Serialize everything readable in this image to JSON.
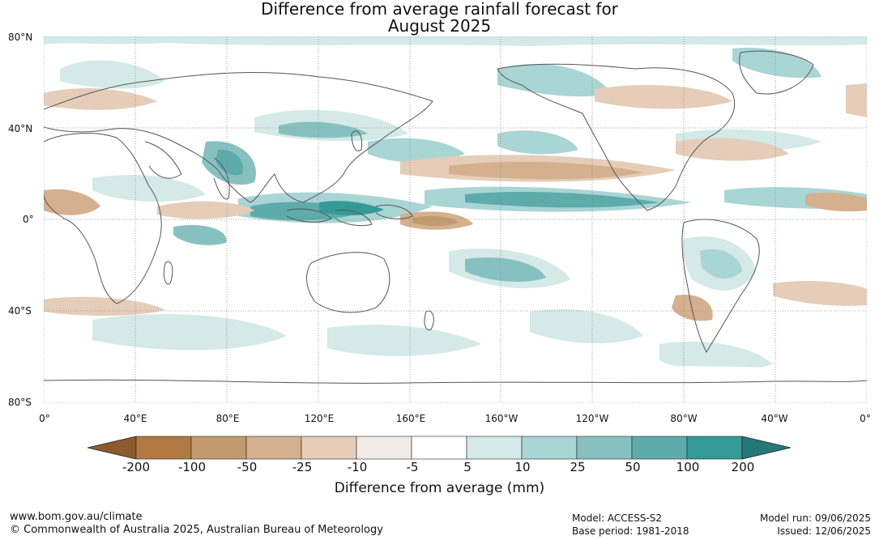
{
  "title_line1": "Difference from average rainfall forecast for",
  "title_line2": "August 2025",
  "lat_labels": [
    "80°N",
    "40°N",
    "0°",
    "40°S",
    "80°S"
  ],
  "lon_labels": [
    "0°",
    "40°E",
    "80°E",
    "120°E",
    "160°E",
    "160°W",
    "120°W",
    "80°W",
    "40°W",
    "0°"
  ],
  "colorbar": {
    "title": "Difference from average (mm)",
    "tick_labels": [
      "-200",
      "-100",
      "-50",
      "-25",
      "-10",
      "-5",
      "5",
      "10",
      "25",
      "50",
      "100",
      "200"
    ],
    "colors": [
      "#8c5a2e",
      "#b07a42",
      "#c39a6e",
      "#d4b08e",
      "#e5cdb9",
      "#f1ebe6",
      "#ffffff",
      "#d4e9e8",
      "#a9d5d4",
      "#86c1c0",
      "#5eabac",
      "#349a97",
      "#25787a"
    ]
  },
  "footer": {
    "url": "www.bom.gov.au/climate",
    "copyright": "© Commonwealth of Australia 2025, Australian Bureau of Meteorology",
    "model": "Model: ACCESS-S2",
    "base_period": "Base period: 1981-2018",
    "model_run": "Model run: 09/06/2025",
    "issued": "Issued: 12/06/2025"
  }
}
